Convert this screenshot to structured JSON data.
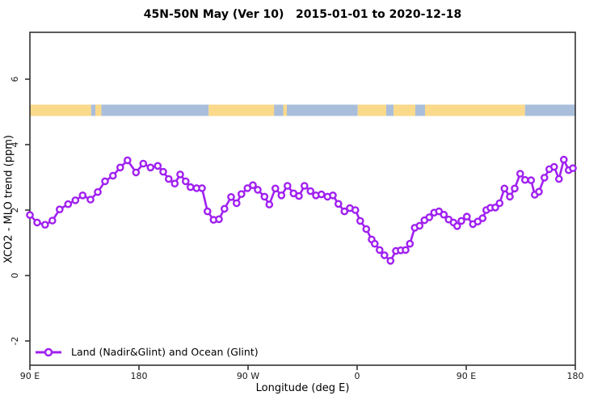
{
  "chart_data": {
    "type": "line",
    "title": "45N-50N May (Ver 10)   2015-01-01 to 2020-12-18",
    "xlabel": "Longitude (deg E)",
    "ylabel": "XCO2 - MLO trend (ppm)",
    "legend": [
      "Land (Nadir&Glint) and Ocean (Glint)"
    ],
    "legend_position": "bottom-left inside plot",
    "grid": false,
    "series_color": "#A020F0",
    "marker": "open-circle",
    "axis_color": "#333333",
    "x_ticks": [
      {
        "label": "90 E",
        "lon": 90
      },
      {
        "label": "180",
        "lon": 180
      },
      {
        "label": "90 W",
        "lon": 270
      },
      {
        "label": "0",
        "lon": 360
      },
      {
        "label": "90 E",
        "lon": 450
      },
      {
        "label": "180",
        "lon": 540
      }
    ],
    "y_ticks": [
      {
        "label": "-2",
        "value": -2
      },
      {
        "label": "0",
        "value": 0
      },
      {
        "label": "2",
        "value": 2
      },
      {
        "label": "4",
        "value": 4
      },
      {
        "label": "6",
        "value": 6
      }
    ],
    "xlim": [
      90,
      540
    ],
    "ylim": [
      -2.7,
      7.4
    ],
    "land_ocean_strip": {
      "level_ppm": 5.05,
      "land_color": "#FAD98A",
      "ocean_color": "#A9BEDB",
      "segments": [
        {
          "type": "land",
          "from": 90,
          "to": 140.5
        },
        {
          "type": "ocean",
          "from": 140.5,
          "to": 237.5
        },
        {
          "type": "land",
          "from": 144,
          "to": 149
        },
        {
          "type": "land",
          "from": 237.5,
          "to": 302
        },
        {
          "type": "ocean",
          "from": 291.5,
          "to": 299
        },
        {
          "type": "ocean",
          "from": 302,
          "to": 360.5
        },
        {
          "type": "land",
          "from": 360.5,
          "to": 498.5
        },
        {
          "type": "ocean",
          "from": 384,
          "to": 390
        },
        {
          "type": "ocean",
          "from": 408,
          "to": 416
        },
        {
          "type": "ocean",
          "from": 498.5,
          "to": 540
        }
      ]
    },
    "series": [
      {
        "name": "Land (Nadir&Glint) and Ocean (Glint)",
        "points": [
          [
            90,
            1.85
          ],
          [
            96,
            1.62
          ],
          [
            102.5,
            1.55
          ],
          [
            108.5,
            1.68
          ],
          [
            114.5,
            2.02
          ],
          [
            121.5,
            2.18
          ],
          [
            127.5,
            2.3
          ],
          [
            133.5,
            2.45
          ],
          [
            140,
            2.32
          ],
          [
            146,
            2.55
          ],
          [
            152,
            2.88
          ],
          [
            158.5,
            3.05
          ],
          [
            164.5,
            3.3
          ],
          [
            170.5,
            3.52
          ],
          [
            177.5,
            3.15
          ],
          [
            183.5,
            3.42
          ],
          [
            189.5,
            3.3
          ],
          [
            195.5,
            3.35
          ],
          [
            200,
            3.17
          ],
          [
            204.5,
            2.95
          ],
          [
            209.5,
            2.81
          ],
          [
            214,
            3.09
          ],
          [
            218.5,
            2.88
          ],
          [
            222.5,
            2.7
          ],
          [
            227.5,
            2.67
          ],
          [
            232,
            2.67
          ],
          [
            236.5,
            1.96
          ],
          [
            241.5,
            1.7
          ],
          [
            246,
            1.72
          ],
          [
            250.5,
            2.04
          ],
          [
            256,
            2.4
          ],
          [
            260.5,
            2.21
          ],
          [
            264.5,
            2.49
          ],
          [
            269.5,
            2.67
          ],
          [
            274,
            2.76
          ],
          [
            278,
            2.62
          ],
          [
            283.5,
            2.41
          ],
          [
            287.5,
            2.17
          ],
          [
            292.5,
            2.66
          ],
          [
            297.5,
            2.45
          ],
          [
            302.5,
            2.74
          ],
          [
            307.5,
            2.51
          ],
          [
            312,
            2.43
          ],
          [
            316.5,
            2.74
          ],
          [
            321.5,
            2.58
          ],
          [
            326,
            2.45
          ],
          [
            330.5,
            2.48
          ],
          [
            335.5,
            2.41
          ],
          [
            340,
            2.45
          ],
          [
            344.5,
            2.19
          ],
          [
            349.5,
            1.96
          ],
          [
            354,
            2.06
          ],
          [
            358.5,
            2.0
          ],
          [
            362.5,
            1.67
          ],
          [
            367.5,
            1.42
          ],
          [
            372,
            1.1
          ],
          [
            374.5,
            0.97
          ],
          [
            378.5,
            0.78
          ],
          [
            382.5,
            0.62
          ],
          [
            387.5,
            0.45
          ],
          [
            392,
            0.75
          ],
          [
            396,
            0.77
          ],
          [
            400,
            0.78
          ],
          [
            403.5,
            0.97
          ],
          [
            407.5,
            1.46
          ],
          [
            411.5,
            1.52
          ],
          [
            415.5,
            1.69
          ],
          [
            419.5,
            1.78
          ],
          [
            423.5,
            1.92
          ],
          [
            427.5,
            1.96
          ],
          [
            431.5,
            1.86
          ],
          [
            435.5,
            1.71
          ],
          [
            439.5,
            1.62
          ],
          [
            442.5,
            1.51
          ],
          [
            446,
            1.67
          ],
          [
            450.5,
            1.8
          ],
          [
            455.5,
            1.57
          ],
          [
            459.5,
            1.65
          ],
          [
            463.5,
            1.75
          ],
          [
            466.5,
            2.0
          ],
          [
            470,
            2.07
          ],
          [
            474,
            2.08
          ],
          [
            477.5,
            2.21
          ],
          [
            481.5,
            2.66
          ],
          [
            486,
            2.41
          ],
          [
            490,
            2.66
          ],
          [
            494.5,
            3.11
          ],
          [
            498.5,
            2.92
          ],
          [
            503.5,
            2.91
          ],
          [
            506.5,
            2.47
          ],
          [
            510,
            2.56
          ],
          [
            514.5,
            2.99
          ],
          [
            518.5,
            3.25
          ],
          [
            522.5,
            3.32
          ],
          [
            526.5,
            2.95
          ],
          [
            530.5,
            3.54
          ],
          [
            534.5,
            3.22
          ],
          [
            538,
            3.28
          ]
        ]
      }
    ]
  }
}
